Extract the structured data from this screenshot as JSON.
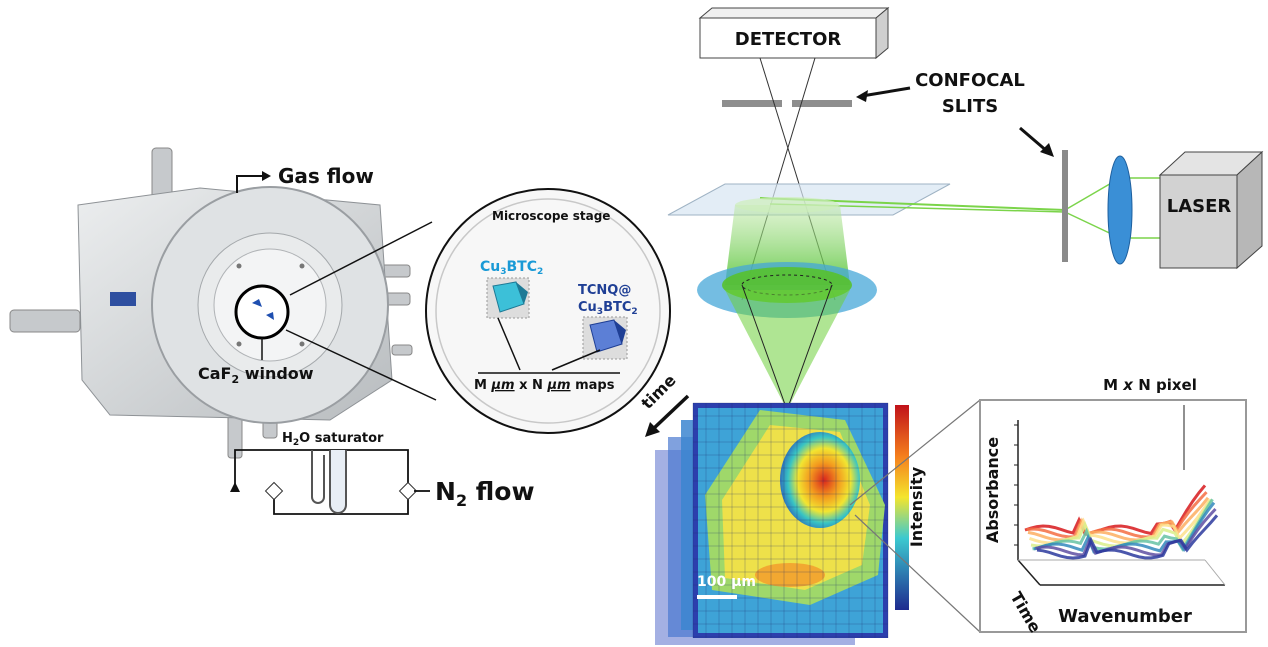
{
  "labels": {
    "gas_flow": "Gas flow",
    "caf2_window": "CaF",
    "caf2_sub": "2",
    "caf2_tail": " window",
    "h2o_saturator": "H",
    "h2o_sub": "2",
    "h2o_tail": "O saturator",
    "n2_flow": "N",
    "n2_sub": "2",
    "n2_tail": " flow",
    "microscope_stage": "Microscope stage",
    "cu3btc2_a": "Cu",
    "cu3btc2_b": "3",
    "cu3btc2_c": "BTC",
    "cu3btc2_d": "2",
    "tcnq_line1": "TCNQ@",
    "maps_m": "M ",
    "maps_um1": "µm",
    "maps_x": " x N ",
    "maps_um2": "µm",
    "maps_tail": " maps",
    "detector": "DETECTOR",
    "confocal": "CONFOCAL",
    "slits": "SLITS",
    "laser": "LASER",
    "time": "time",
    "scale_bar": "100 µm",
    "intensity": "Intensity",
    "pixel_title_a": "M ",
    "pixel_title_x": "x",
    "pixel_title_b": " N pixel",
    "absorbance": "Absorbance",
    "time_axis": "Time",
    "wavenumber": "Wavenumber"
  },
  "colors": {
    "beam_green": "#7bd44a",
    "lens_blue": "#3a8fd6",
    "cu_cyan": "#1a9ad6",
    "tcnq_navy": "#1f3f95"
  }
}
